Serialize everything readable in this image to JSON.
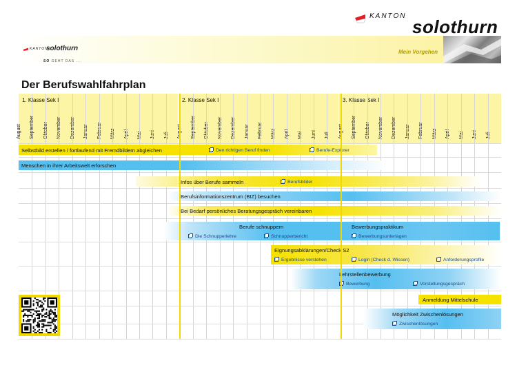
{
  "brand": {
    "kanton": "KANTON",
    "name": "solothurn",
    "slogan_bold": "SO",
    "slogan": "GEHT DAS ..."
  },
  "header": {
    "title": "Mein Vorgehen"
  },
  "page_title": "Der Berufswahlfahrplan",
  "years": [
    "1. Klasse Sek I",
    "2. Klasse Sek I",
    "3. Klasse Sek I"
  ],
  "months": [
    "August",
    "September",
    "Oktober",
    "November",
    "Dezember",
    "Januar",
    "Februar",
    "März",
    "April",
    "Mai",
    "Juni",
    "Juli",
    "August",
    "September",
    "Oktober",
    "November",
    "Dezember",
    "Januar",
    "Februar",
    "März",
    "April",
    "Mai",
    "Juni",
    "Juli",
    "August",
    "September",
    "Oktober",
    "November",
    "Dezember",
    "Januar",
    "Februar",
    "März",
    "April",
    "Mai",
    "Juni",
    "Juli"
  ],
  "activities": {
    "selbstbild": "Selbstbild erstellen / fortlaufend mit Fremdbildern abgleichen",
    "arbeitswelt": "Menschen in ihrer Arbeitswelt erforschen",
    "infos": "Infos über Berufe sammeln",
    "biz": "Berufsinformationszentrum (BIZ) besuchen",
    "beratung": "Bei Bedarf persönliches Beratungsgespräch vereinbaren",
    "schnuppern": "Berufe schnuppern",
    "praktikum": "Bewerbungspraktikum",
    "eignung": "Eignungsabklärungen/Check S2",
    "lehrstelle": "Lehrstellenbewerbung",
    "mittelschule": "Anmeldung Mittelschule",
    "zwischen": "Möglichkeit Zwischenlösungen"
  },
  "links": {
    "richtigen_beruf": "Den richtigen Beruf finden",
    "explorer": "Berufe-Explorer",
    "berufsbilder": "Berufsbilder",
    "schnupperlehre": "Die Schnupperlehre",
    "schnupperbericht": "Schnupperbericht",
    "bewerbungsunterlagen": "Bewerbungsunterlagen",
    "ergebnisse": "Ergebnisse verstehen",
    "login": "Login (Check d. Wissen)",
    "anforderung": "Anforderungsprofile",
    "bewerbung": "Bewerbung",
    "vorstellung": "Vorstellungsgespräch",
    "zwischenloesungen": "Zwischenlösungen"
  },
  "colors": {
    "yellow": "#f5e200",
    "blue": "#55bff0",
    "header": "#fdf5a6",
    "divider": "#f0d800"
  }
}
